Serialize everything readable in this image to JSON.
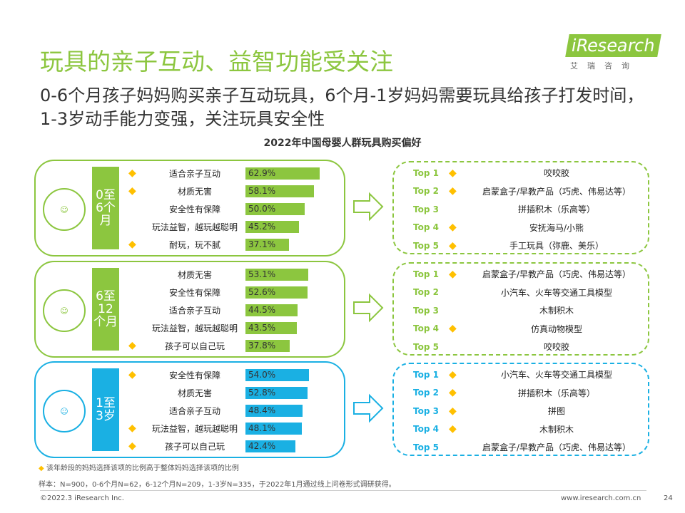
{
  "title": "玩具的亲子互动、益智功能受关注",
  "subtitle": "0-6个月孩子妈妈购买亲子互动玩具，6个月-1岁妈妈需要玩具给孩子打发时间，1-3岁动手能力变强，关注玩具安全性",
  "logo": {
    "text": "iResearch",
    "sub": "艾瑞咨询"
  },
  "chart_title": "2022年中国母婴人群玩具购买偏好",
  "colors": {
    "green": "#8cc63f",
    "blue": "#1ab0e3",
    "gem": "#ffc000"
  },
  "groups": [
    {
      "age": "0至6个月",
      "color": "#8cc63f",
      "items": [
        {
          "gem": true,
          "label": "适合亲子互动",
          "value": 62.9,
          "text": "62.9%"
        },
        {
          "gem": true,
          "label": "材质无害",
          "value": 58.1,
          "text": "58.1%"
        },
        {
          "gem": false,
          "label": "安全性有保障",
          "value": 50.0,
          "text": "50.0%"
        },
        {
          "gem": false,
          "label": "玩法益智，越玩越聪明",
          "value": 45.2,
          "text": "45.2%"
        },
        {
          "gem": true,
          "label": "耐玩，玩不腻",
          "value": 37.1,
          "text": "37.1%"
        }
      ],
      "top": [
        {
          "rank": "Top 1",
          "gem": true,
          "name": "咬咬胶"
        },
        {
          "rank": "Top 2",
          "gem": true,
          "name": "启蒙盒子/早教产品（巧虎、伟易达等）"
        },
        {
          "rank": "Top 3",
          "gem": false,
          "name": "拼插积木（乐高等）"
        },
        {
          "rank": "Top 4",
          "gem": true,
          "name": "安抚海马/小熊"
        },
        {
          "rank": "Top 5",
          "gem": true,
          "name": "手工玩具（弥鹿、美乐）"
        }
      ]
    },
    {
      "age": "6至12个月",
      "color": "#8cc63f",
      "items": [
        {
          "gem": false,
          "label": "材质无害",
          "value": 53.1,
          "text": "53.1%"
        },
        {
          "gem": false,
          "label": "安全性有保障",
          "value": 52.6,
          "text": "52.6%"
        },
        {
          "gem": false,
          "label": "适合亲子互动",
          "value": 44.5,
          "text": "44.5%"
        },
        {
          "gem": false,
          "label": "玩法益智，越玩越聪明",
          "value": 43.5,
          "text": "43.5%"
        },
        {
          "gem": true,
          "label": "孩子可以自己玩",
          "value": 37.8,
          "text": "37.8%"
        }
      ],
      "top": [
        {
          "rank": "Top 1",
          "gem": true,
          "name": "启蒙盒子/早教产品（巧虎、伟易达等）"
        },
        {
          "rank": "Top 2",
          "gem": false,
          "name": "小汽车、火车等交通工具模型"
        },
        {
          "rank": "Top 3",
          "gem": false,
          "name": "木制积木"
        },
        {
          "rank": "Top 4",
          "gem": true,
          "name": "仿真动物模型"
        },
        {
          "rank": "Top 5",
          "gem": false,
          "name": "咬咬胶"
        }
      ]
    },
    {
      "age": "1至3岁",
      "color": "#1ab0e3",
      "items": [
        {
          "gem": true,
          "label": "安全性有保障",
          "value": 54.0,
          "text": "54.0%"
        },
        {
          "gem": false,
          "label": "材质无害",
          "value": 52.8,
          "text": "52.8%"
        },
        {
          "gem": false,
          "label": "适合亲子互动",
          "value": 48.4,
          "text": "48.4%"
        },
        {
          "gem": true,
          "label": "玩法益智，越玩越聪明",
          "value": 48.1,
          "text": "48.1%"
        },
        {
          "gem": true,
          "label": "孩子可以自己玩",
          "value": 42.4,
          "text": "42.4%"
        }
      ],
      "top": [
        {
          "rank": "Top 1",
          "gem": true,
          "name": "小汽车、火车等交通工具模型"
        },
        {
          "rank": "Top 2",
          "gem": true,
          "name": "拼插积木（乐高等）"
        },
        {
          "rank": "Top 3",
          "gem": true,
          "name": "拼图"
        },
        {
          "rank": "Top 4",
          "gem": true,
          "name": "木制积木"
        },
        {
          "rank": "Top 5",
          "gem": false,
          "name": "启蒙盒子/早教产品（巧虎、伟易达等）"
        }
      ]
    }
  ],
  "legend_note": "该年龄段的妈妈选择该项的比例高于整体妈妈选择该项的比例",
  "sample_note": "样本：N=900，0-6个月N=62，6-12个月N=209，1-3岁N=335，于2022年1月通过线上问卷形式调研获得。",
  "copyright": "©2022.3 iResearch Inc.",
  "website": "www.iresearch.com.cn",
  "page_number": "24"
}
